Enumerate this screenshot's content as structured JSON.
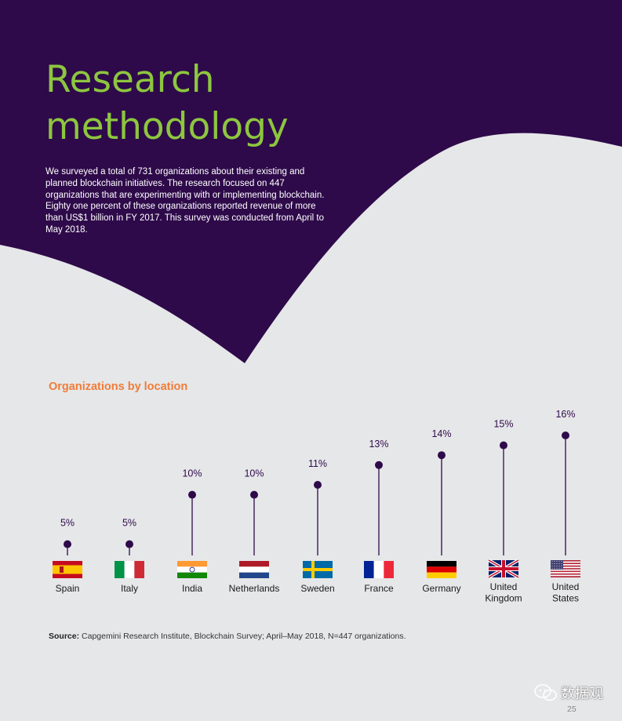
{
  "page": {
    "title_line1": "Research",
    "title_line2": "methodology",
    "intro": "We surveyed a total of 731 organizations about their existing and planned blockchain initiatives. The research focused on 447 organizations that are experimenting with or implementing blockchain. Eighty one percent of these organizations reported revenue of more than US$1 billion in FY 2017. This survey was conducted from April to May 2018.",
    "page_number": "25",
    "watermark": "数据观"
  },
  "colors": {
    "background": "#e6e7e9",
    "header_purple": "#2e0a4a",
    "title_green": "#8dc63f",
    "chart_title_orange": "#f07c38",
    "marker": "#2e0a4a"
  },
  "source": {
    "label": "Source:",
    "text": "Capgemini Research Institute, Blockchain Survey; April–May 2018, N=447 organizations."
  },
  "chart_data": {
    "type": "lollipop",
    "title": "Organizations by location",
    "unit": "%",
    "categories": [
      {
        "label_lines": [
          "Spain"
        ],
        "value": 5,
        "flag": "spain-flag-icon"
      },
      {
        "label_lines": [
          "Italy"
        ],
        "value": 5,
        "flag": "italy-flag-icon"
      },
      {
        "label_lines": [
          "India"
        ],
        "value": 10,
        "flag": "india-flag-icon"
      },
      {
        "label_lines": [
          "Netherlands"
        ],
        "value": 10,
        "flag": "netherlands-flag-icon"
      },
      {
        "label_lines": [
          "Sweden"
        ],
        "value": 11,
        "flag": "sweden-flag-icon"
      },
      {
        "label_lines": [
          "France"
        ],
        "value": 13,
        "flag": "france-flag-icon"
      },
      {
        "label_lines": [
          "Germany"
        ],
        "value": 14,
        "flag": "germany-flag-icon"
      },
      {
        "label_lines": [
          "United",
          "Kingdom"
        ],
        "value": 15,
        "flag": "uk-flag-icon"
      },
      {
        "label_lines": [
          "United",
          "States"
        ],
        "value": 16,
        "flag": "usa-flag-icon"
      }
    ]
  }
}
